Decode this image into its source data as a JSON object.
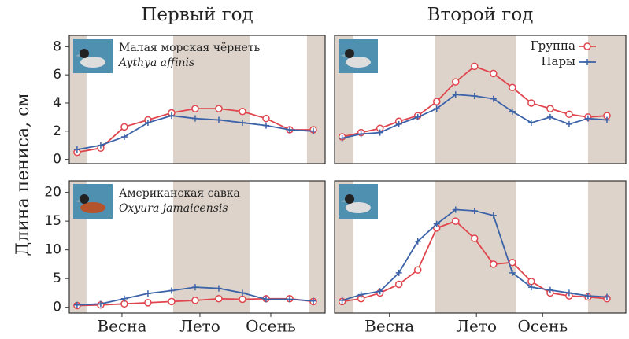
{
  "y_label": "Длина пениса, см",
  "chart_data": [
    {
      "type": "line",
      "title": "Первый год",
      "species": "Малая морская чёрнеть",
      "latin": "Aythya affinis",
      "x": [
        0,
        1,
        2,
        3,
        4,
        5,
        6,
        7,
        8,
        9,
        10
      ],
      "xlim": [
        -0.33,
        10.5
      ],
      "ylim": [
        -0.3,
        8.8
      ],
      "yticks": [
        0,
        2,
        4,
        6,
        8
      ],
      "shaded": [
        [
          -0.33,
          0.4
        ],
        [
          4.07,
          7.3
        ],
        [
          9.73,
          10.5
        ]
      ],
      "series": [
        {
          "color": "#e0454d",
          "marker": "circle",
          "values": [
            0.5,
            0.8,
            2.3,
            2.8,
            3.3,
            3.6,
            3.6,
            3.4,
            2.9,
            2.1,
            2.1
          ]
        },
        {
          "color": "#3c62a8",
          "marker": "plus",
          "values": [
            0.7,
            1.0,
            1.6,
            2.6,
            3.1,
            2.9,
            2.8,
            2.6,
            2.4,
            2.1,
            2.0
          ]
        }
      ]
    },
    {
      "type": "line",
      "title": "Второй год",
      "x": [
        0,
        1,
        2,
        3,
        4,
        5,
        6,
        7,
        8,
        9,
        10,
        11,
        12,
        13,
        14
      ],
      "xlim": [
        -0.4,
        15
      ],
      "ylim": [
        -0.3,
        8.8
      ],
      "shaded": [
        [
          -0.4,
          0.6
        ],
        [
          4.9,
          9.2
        ],
        [
          13.0,
          15
        ]
      ],
      "legend": "upper right",
      "series": [
        {
          "name": "Группа",
          "color": "#e0454d",
          "marker": "circle",
          "values": [
            1.6,
            1.9,
            2.2,
            2.7,
            3.1,
            4.1,
            5.5,
            6.6,
            6.1,
            5.1,
            4.0,
            3.6,
            3.2,
            3.0,
            3.1
          ]
        },
        {
          "name": "Пары",
          "color": "#3c62a8",
          "marker": "plus",
          "values": [
            1.5,
            1.8,
            1.9,
            2.5,
            3.0,
            3.6,
            4.6,
            4.5,
            4.3,
            3.4,
            2.6,
            3.0,
            2.5,
            2.9,
            2.8
          ]
        }
      ]
    },
    {
      "type": "line",
      "species": "Американская савка",
      "latin": "Oxyura jamaicensis",
      "x": [
        0,
        1,
        2,
        3,
        4,
        5,
        6,
        7,
        8,
        9,
        10
      ],
      "xlim": [
        -0.33,
        10.5
      ],
      "ylim": [
        -1,
        22
      ],
      "yticks": [
        0,
        5,
        10,
        15,
        20
      ],
      "xticks": [
        {
          "value": 1.9,
          "label": "Весна"
        },
        {
          "value": 5.2,
          "label": "Лето"
        },
        {
          "value": 8.2,
          "label": "Осень"
        }
      ],
      "shaded": [
        [
          -0.33,
          0.4
        ],
        [
          4.07,
          7.3
        ],
        [
          9.8,
          10.5
        ]
      ],
      "series": [
        {
          "color": "#e0454d",
          "marker": "circle",
          "values": [
            0.3,
            0.4,
            0.6,
            0.8,
            1.0,
            1.2,
            1.5,
            1.4,
            1.5,
            1.5,
            1.0
          ]
        },
        {
          "color": "#3c62a8",
          "marker": "plus",
          "values": [
            0.4,
            0.6,
            1.5,
            2.4,
            2.9,
            3.5,
            3.3,
            2.5,
            1.4,
            1.4,
            1.1
          ]
        }
      ]
    },
    {
      "type": "line",
      "x": [
        0,
        1,
        2,
        3,
        4,
        5,
        6,
        7,
        8,
        9,
        10,
        11,
        12,
        13,
        14
      ],
      "xlim": [
        -0.4,
        15
      ],
      "ylim": [
        -1,
        22
      ],
      "xticks": [
        {
          "value": 2.5,
          "label": "Весна"
        },
        {
          "value": 7.1,
          "label": "Лето"
        },
        {
          "value": 10.6,
          "label": "Осень"
        }
      ],
      "shaded": [
        [
          -0.4,
          0.6
        ],
        [
          4.9,
          9.2
        ],
        [
          13.0,
          15
        ]
      ],
      "series": [
        {
          "color": "#e0454d",
          "marker": "circle",
          "values": [
            1.0,
            1.5,
            2.5,
            4.0,
            6.5,
            13.8,
            15.0,
            12.0,
            7.5,
            7.8,
            4.5,
            2.5,
            2.0,
            1.8,
            1.5
          ]
        },
        {
          "color": "#3c62a8",
          "marker": "plus",
          "values": [
            1.2,
            2.2,
            2.8,
            6.0,
            11.5,
            14.5,
            17.0,
            16.8,
            16.0,
            6.0,
            3.5,
            3.0,
            2.5,
            2.0,
            1.8
          ]
        }
      ]
    }
  ]
}
